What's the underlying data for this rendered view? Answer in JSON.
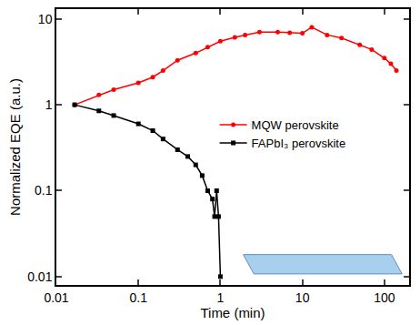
{
  "chart_data": {
    "type": "line",
    "x_label": "Time (min)",
    "y_label": "Normalized EQE (a.u.)",
    "log": true,
    "grid": false,
    "legend": "center",
    "xlim": [
      0.01,
      200
    ],
    "ylim": [
      0.008,
      13
    ],
    "xticks": [
      0.01,
      0.1,
      1,
      10,
      100
    ],
    "yticks": [
      0.01,
      0.1,
      1,
      10
    ],
    "series": [
      {
        "name": "MQW perovskite",
        "color": "#ff0000",
        "marker": "circle",
        "line_style": "solid",
        "x": [
          0.0167,
          0.033,
          0.05,
          0.1,
          0.15,
          0.2,
          0.3,
          0.5,
          0.7,
          1,
          1.5,
          2,
          3,
          5,
          7,
          10,
          13,
          20,
          30,
          50,
          70,
          100,
          120,
          140
        ],
        "values": [
          1,
          1.3,
          1.5,
          1.8,
          2.1,
          2.5,
          3.3,
          4.0,
          4.7,
          5.5,
          6.1,
          6.5,
          7.0,
          7.0,
          6.9,
          6.8,
          8.0,
          6.5,
          6.0,
          5.0,
          4.4,
          3.5,
          3.0,
          2.5
        ]
      },
      {
        "name": "FAPbI₃ perovskite",
        "color": "#000000",
        "marker": "square",
        "line_style": "solid",
        "x": [
          0.0167,
          0.033,
          0.05,
          0.1,
          0.15,
          0.2,
          0.3,
          0.4,
          0.5,
          0.6,
          0.7,
          0.8,
          0.85,
          0.9,
          0.95,
          1.0
        ],
        "values": [
          1,
          0.85,
          0.75,
          0.6,
          0.5,
          0.4,
          0.3,
          0.25,
          0.2,
          0.15,
          0.1,
          0.08,
          0.05,
          0.1,
          0.05,
          0.01
        ]
      }
    ]
  }
}
